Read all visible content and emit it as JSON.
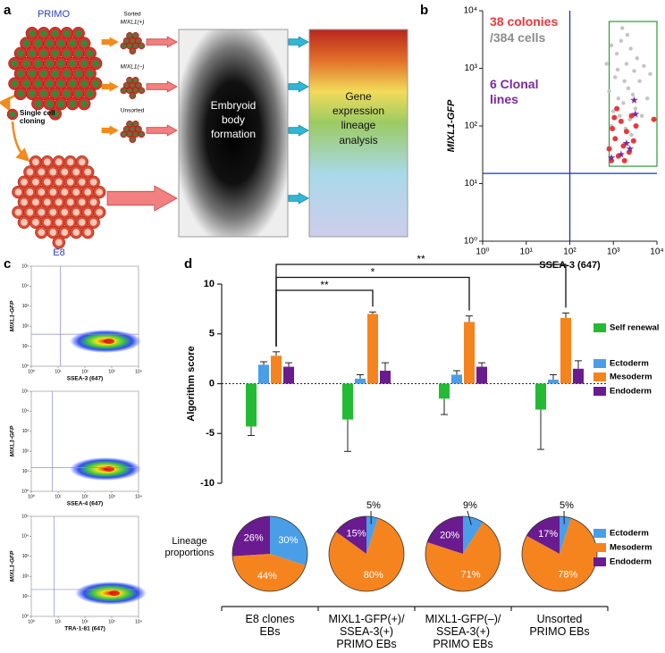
{
  "panels": [
    "a",
    "b",
    "c",
    "d"
  ],
  "diagram": {
    "top_cluster": "PRIMO",
    "sorted": "Sorted",
    "positive": "MIXL1(+)",
    "negative": "MIXL1(−)",
    "unsorted": "Unsorted",
    "cloning": "Single cell\ncloning",
    "bottom_cluster": "E8",
    "step1": "Embryoid\nbody\nformation",
    "step2": "Gene\nexpression\nlineage\nanalysis"
  },
  "chart_data": [
    {
      "type": "scatter",
      "log": true,
      "x_label": "SSEA-3 (647)",
      "y_label": "MIXL1-GFP",
      "xlim": [
        1,
        10000
      ],
      "ylim": [
        1,
        10000
      ],
      "xticks": [
        {
          "value": 1,
          "label": "10⁰"
        },
        {
          "value": 10,
          "label": "10¹"
        },
        {
          "value": 100,
          "label": "10²"
        },
        {
          "value": 1000,
          "label": "10³"
        },
        {
          "value": 10000,
          "label": "10⁴"
        }
      ],
      "yticks": [
        {
          "value": 1,
          "label": "10⁰"
        },
        {
          "value": 10,
          "label": "10¹"
        },
        {
          "value": 100,
          "label": "10²"
        },
        {
          "value": 1000,
          "label": "10³"
        },
        {
          "value": 10000,
          "label": "10⁴"
        }
      ],
      "gate": {
        "x": 100,
        "y": 15
      },
      "gate_color": "#1f2fc4",
      "box": {
        "x": [
          800,
          10000
        ],
        "y": [
          20,
          6500
        ]
      },
      "box_color": "#2e9a3a",
      "annotations": [
        {
          "text": "38 colonies",
          "color": "#e8383d"
        },
        {
          "text": "/384 cells",
          "color": "#8c8c8c"
        },
        {
          "text": "6 Clonal\nlines",
          "color": "#7b2a9c"
        }
      ],
      "series": [
        {
          "color": "#c4c4c4",
          "marker": "circle",
          "x": [
            900,
            1200,
            1500,
            2000,
            2500,
            3000,
            1100,
            1800,
            2200,
            3500,
            800,
            1300,
            1700,
            2800,
            4000,
            5000,
            6000,
            1000,
            1400,
            2400,
            3200,
            900,
            1900,
            2600,
            4500,
            700,
            1600,
            2100,
            7000,
            1250
          ],
          "y": [
            2500,
            1800,
            3000,
            1200,
            2200,
            900,
            700,
            600,
            450,
            1500,
            400,
            300,
            250,
            350,
            600,
            1100,
            300,
            180,
            150,
            130,
            200,
            100,
            90,
            70,
            150,
            1200,
            5000,
            3800,
            800,
            950
          ]
        },
        {
          "color": "#e8383d",
          "marker": "circle",
          "x": [
            800,
            950,
            1100,
            1300,
            1500,
            1700,
            2000,
            2300,
            2600,
            2900,
            3300,
            900,
            1200,
            1800,
            8500,
            1050
          ],
          "y": [
            40,
            90,
            60,
            30,
            120,
            45,
            80,
            35,
            150,
            55,
            100,
            25,
            200,
            25,
            130,
            140
          ]
        },
        {
          "color": "#7b2a9c",
          "marker": "star",
          "x": [
            900,
            1500,
            2000,
            2400,
            3000,
            3200
          ],
          "y": [
            28,
            32,
            50,
            40,
            280,
            160
          ]
        }
      ]
    },
    {
      "type": "density",
      "log": true,
      "x_label": "SSEA-3 (647)",
      "y_label": "MIXL1-GFP",
      "xlim": [
        1,
        10000
      ],
      "ylim": [
        1,
        100000
      ],
      "xticks": [
        {
          "value": 1,
          "label": "10⁰"
        },
        {
          "value": 10,
          "label": "10¹"
        },
        {
          "value": 100,
          "label": "10²"
        },
        {
          "value": 1000,
          "label": "10³"
        },
        {
          "value": 10000,
          "label": "10⁴"
        }
      ],
      "yticks": [
        {
          "value": 1,
          "label": "10⁰"
        },
        {
          "value": 10,
          "label": "10¹"
        },
        {
          "value": 100,
          "label": "10²"
        },
        {
          "value": 1000,
          "label": "10³"
        },
        {
          "value": 10000,
          "label": "10⁴"
        },
        {
          "value": 100000,
          "label": "10⁵"
        }
      ],
      "gate": {
        "x": 12,
        "y": 40
      },
      "gate_color": "#8a8ad8"
    },
    {
      "type": "density",
      "log": true,
      "x_label": "SSEA-4 (647)",
      "y_label": "MIXL1-GFP",
      "xlim": [
        1,
        10000
      ],
      "ylim": [
        1,
        100000
      ],
      "xticks": [
        {
          "value": 1,
          "label": "10⁰"
        },
        {
          "value": 10,
          "label": "10¹"
        },
        {
          "value": 100,
          "label": "10²"
        },
        {
          "value": 1000,
          "label": "10³"
        },
        {
          "value": 10000,
          "label": "10⁴"
        }
      ],
      "yticks": [
        {
          "value": 1,
          "label": "10⁰"
        },
        {
          "value": 10,
          "label": "10¹"
        },
        {
          "value": 100,
          "label": "10²"
        },
        {
          "value": 1000,
          "label": "10³"
        },
        {
          "value": 10000,
          "label": "10⁴"
        },
        {
          "value": 100000,
          "label": "10⁵"
        }
      ],
      "gate": {
        "x": 6,
        "y": 15
      },
      "gate_color": "#8a8ad8"
    },
    {
      "type": "density",
      "log": true,
      "x_label": "TRA-1-81 (647)",
      "y_label": "MIXL1-GFP",
      "xlim": [
        1,
        10000
      ],
      "ylim": [
        1,
        100000
      ],
      "xticks": [
        {
          "value": 1,
          "label": "10⁰"
        },
        {
          "value": 10,
          "label": "10¹"
        },
        {
          "value": 100,
          "label": "10²"
        },
        {
          "value": 1000,
          "label": "10³"
        },
        {
          "value": 10000,
          "label": "10⁴"
        }
      ],
      "yticks": [
        {
          "value": 1,
          "label": "10⁰"
        },
        {
          "value": 10,
          "label": "10¹"
        },
        {
          "value": 100,
          "label": "10²"
        },
        {
          "value": 1000,
          "label": "10³"
        },
        {
          "value": 10000,
          "label": "10⁴"
        },
        {
          "value": 100000,
          "label": "10⁵"
        }
      ],
      "gate": {
        "x": 7,
        "y": 22
      },
      "gate_color": "#8a8ad8"
    },
    {
      "type": "bar",
      "y_label": "Algorithm score",
      "categories": [
        "E8 clones\nEBs",
        "MIXL1-GFP(+)/\nSSEA-3(+)\nPRIMO EBs",
        "MIXL1-GFP(–)/\nSSEA-3(+)\nPRIMO EBs",
        "Unsorted\nPRIMO EBs"
      ],
      "ylim": [
        -10,
        10
      ],
      "yticks": [
        -10,
        -5,
        0,
        5,
        10
      ],
      "series": [
        {
          "name": "Self renewal",
          "color": "#22bb33",
          "values": [
            -4.3,
            -3.6,
            -1.5,
            -2.6
          ],
          "errors": [
            0.9,
            3.2,
            1.6,
            4.0
          ]
        },
        {
          "name": "Ectoderm",
          "color": "#4a9ee8",
          "values": [
            1.9,
            0.5,
            0.9,
            0.4
          ],
          "errors": [
            0.3,
            0.4,
            0.4,
            0.5
          ]
        },
        {
          "name": "Mesoderm",
          "color": "#f5841f",
          "values": [
            2.8,
            7.0,
            6.2,
            6.6
          ],
          "errors": [
            0.4,
            0.2,
            0.6,
            0.5
          ]
        },
        {
          "name": "Endoderm",
          "color": "#6a1b8f",
          "values": [
            1.7,
            1.3,
            1.7,
            1.5
          ],
          "errors": [
            0.4,
            0.8,
            0.4,
            0.8
          ]
        }
      ],
      "significance": [
        "**",
        "*",
        "**"
      ]
    },
    {
      "type": "pie",
      "title": "Lineage\nproportions",
      "series": [
        {
          "name": "Ectoderm",
          "color": "#4a9ee8",
          "values": [
            30,
            5,
            9,
            5
          ],
          "value_labels": [
            "30%",
            "5%",
            "9%",
            "5%"
          ]
        },
        {
          "name": "Mesoderm",
          "color": "#f5841f",
          "values": [
            44,
            80,
            71,
            78
          ],
          "value_labels": [
            "44%",
            "80%",
            "71%",
            "78%"
          ]
        },
        {
          "name": "Endoderm",
          "color": "#6a1b8f",
          "values": [
            26,
            15,
            20,
            17
          ],
          "value_labels": [
            "26%",
            "15%",
            "20%",
            "17%"
          ]
        }
      ]
    }
  ]
}
